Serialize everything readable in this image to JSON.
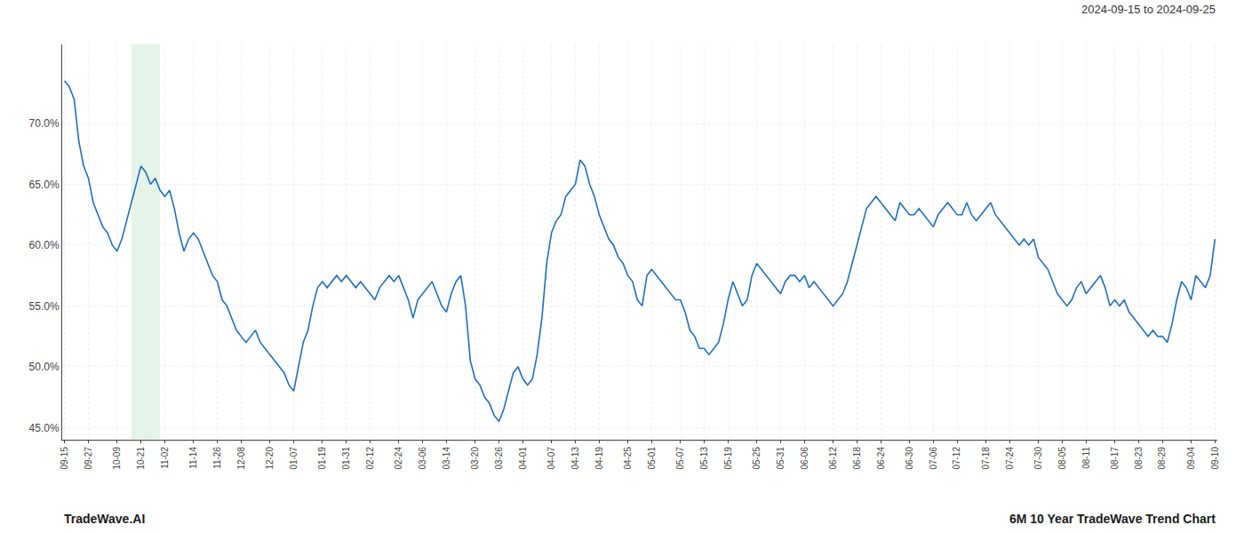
{
  "chart_data": {
    "type": "line",
    "annotations": [
      "2024-09-15 to 2024-09-25",
      "TradeWave.AI",
      "6M 10 Year TradeWave Trend Chart"
    ],
    "color": "#1f6fbf",
    "grid": true,
    "band": {
      "x": [
        14,
        20
      ],
      "color": "#d4edda"
    },
    "ylim": [
      44.0,
      76.5
    ],
    "yticks": [
      {
        "value": 45.0,
        "label": "45.0%"
      },
      {
        "value": 50.0,
        "label": "50.0%"
      },
      {
        "value": 55.0,
        "label": "55.0%"
      },
      {
        "value": 60.0,
        "label": "60.0%"
      },
      {
        "value": 65.0,
        "label": "65.0%"
      },
      {
        "value": 70.0,
        "label": "70.0%"
      }
    ],
    "categories": [
      "09-15",
      null,
      null,
      null,
      null,
      "09-27",
      null,
      null,
      null,
      null,
      null,
      "10-09",
      null,
      null,
      null,
      null,
      "10-21",
      null,
      null,
      null,
      null,
      "11-02",
      null,
      null,
      null,
      null,
      null,
      "11-14",
      null,
      null,
      null,
      null,
      "11-26",
      null,
      null,
      null,
      null,
      "12-08",
      null,
      null,
      null,
      null,
      null,
      "12-20",
      null,
      null,
      null,
      null,
      "01-07",
      null,
      null,
      null,
      null,
      null,
      "01-19",
      null,
      null,
      null,
      null,
      "01-31",
      null,
      null,
      null,
      null,
      "02-12",
      null,
      null,
      null,
      null,
      null,
      "02-24",
      null,
      null,
      null,
      null,
      "03-06",
      null,
      null,
      null,
      null,
      "03-14",
      null,
      null,
      null,
      null,
      null,
      "03-20",
      null,
      null,
      null,
      null,
      "03-26",
      null,
      null,
      null,
      null,
      "04-01",
      null,
      null,
      null,
      null,
      null,
      "04-07",
      null,
      null,
      null,
      null,
      "04-13",
      null,
      null,
      null,
      null,
      "04-19",
      null,
      null,
      null,
      null,
      null,
      "04-25",
      null,
      null,
      null,
      null,
      "05-01",
      null,
      null,
      null,
      null,
      null,
      "05-07",
      null,
      null,
      null,
      null,
      "05-13",
      null,
      null,
      null,
      null,
      "05-19",
      null,
      null,
      null,
      null,
      null,
      "05-25",
      null,
      null,
      null,
      null,
      "05-31",
      null,
      null,
      null,
      null,
      "06-06",
      null,
      null,
      null,
      null,
      null,
      "06-12",
      null,
      null,
      null,
      null,
      "06-18",
      null,
      null,
      null,
      null,
      "06-24",
      null,
      null,
      null,
      null,
      null,
      "06-30",
      null,
      null,
      null,
      null,
      "07-06",
      null,
      null,
      null,
      null,
      "07-12",
      null,
      null,
      null,
      null,
      null,
      "07-18",
      null,
      null,
      null,
      null,
      "07-24",
      null,
      null,
      null,
      null,
      null,
      "07-30",
      null,
      null,
      null,
      null,
      "08-05",
      null,
      null,
      null,
      null,
      "08-11",
      null,
      null,
      null,
      null,
      null,
      "08-17",
      null,
      null,
      null,
      null,
      "08-23",
      null,
      null,
      null,
      null,
      "08-29",
      null,
      null,
      null,
      null,
      null,
      "09-04",
      null,
      null,
      null,
      null,
      "09-10"
    ],
    "values": [
      73.5,
      73.0,
      72.0,
      68.5,
      66.5,
      65.5,
      63.5,
      62.5,
      61.5,
      61.0,
      60.0,
      59.5,
      60.5,
      62.0,
      63.5,
      65.0,
      66.5,
      66.0,
      65.0,
      65.5,
      64.5,
      64.0,
      64.5,
      63.0,
      61.0,
      59.5,
      60.5,
      61.0,
      60.5,
      59.5,
      58.5,
      57.5,
      57.0,
      55.5,
      55.0,
      54.0,
      53.0,
      52.5,
      52.0,
      52.5,
      53.0,
      52.0,
      51.5,
      51.0,
      50.5,
      50.0,
      49.5,
      48.5,
      48.0,
      50.0,
      52.0,
      53.0,
      55.0,
      56.5,
      57.0,
      56.5,
      57.0,
      57.5,
      57.0,
      57.5,
      57.0,
      56.5,
      57.0,
      56.5,
      56.0,
      55.5,
      56.5,
      57.0,
      57.5,
      57.0,
      57.5,
      56.5,
      55.5,
      54.0,
      55.5,
      56.0,
      56.5,
      57.0,
      56.0,
      55.0,
      54.5,
      56.0,
      57.0,
      57.5,
      55.0,
      50.5,
      49.0,
      48.5,
      47.5,
      47.0,
      46.0,
      45.5,
      46.5,
      48.0,
      49.5,
      50.0,
      49.0,
      48.5,
      49.0,
      51.0,
      54.0,
      58.5,
      61.0,
      62.0,
      62.5,
      64.0,
      64.5,
      65.0,
      67.0,
      66.5,
      65.0,
      64.0,
      62.5,
      61.5,
      60.5,
      60.0,
      59.0,
      58.5,
      57.5,
      57.0,
      55.5,
      55.0,
      57.5,
      58.0,
      57.5,
      57.0,
      56.5,
      56.0,
      55.5,
      55.5,
      54.5,
      53.0,
      52.5,
      51.5,
      51.5,
      51.0,
      51.5,
      52.0,
      53.5,
      55.5,
      57.0,
      56.0,
      55.0,
      55.5,
      57.5,
      58.5,
      58.0,
      57.5,
      57.0,
      56.5,
      56.0,
      57.0,
      57.5,
      57.5,
      57.0,
      57.5,
      56.5,
      57.0,
      56.5,
      56.0,
      55.5,
      55.0,
      55.5,
      56.0,
      57.0,
      58.5,
      60.0,
      61.5,
      63.0,
      63.5,
      64.0,
      63.5,
      63.0,
      62.5,
      62.0,
      63.5,
      63.0,
      62.5,
      62.5,
      63.0,
      62.5,
      62.0,
      61.5,
      62.5,
      63.0,
      63.5,
      63.0,
      62.5,
      62.5,
      63.5,
      62.5,
      62.0,
      62.5,
      63.0,
      63.5,
      62.5,
      62.0,
      61.5,
      61.0,
      60.5,
      60.0,
      60.5,
      60.0,
      60.5,
      59.0,
      58.5,
      58.0,
      57.0,
      56.0,
      55.5,
      55.0,
      55.5,
      56.5,
      57.0,
      56.0,
      56.5,
      57.0,
      57.5,
      56.5,
      55.0,
      55.5,
      55.0,
      55.5,
      54.5,
      54.0,
      53.5,
      53.0,
      52.5,
      53.0,
      52.5,
      52.5,
      52.0,
      53.5,
      55.5,
      57.0,
      56.5,
      55.5,
      57.5,
      57.0,
      56.5,
      57.5,
      60.5
    ]
  }
}
